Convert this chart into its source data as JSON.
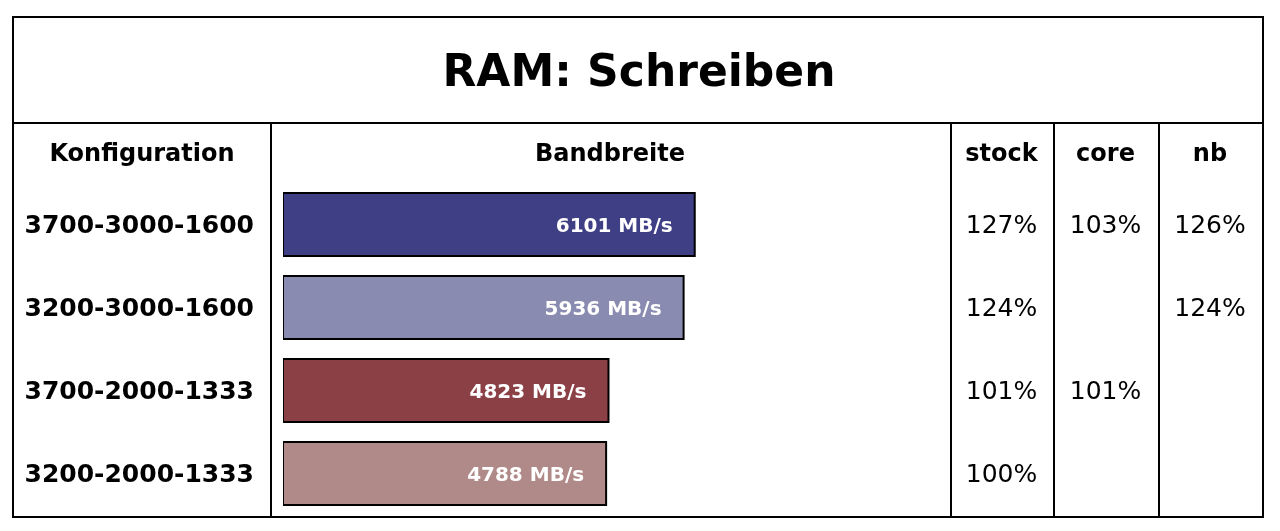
{
  "chart_data": [
    {
      "type": "bar",
      "orientation": "horizontal",
      "title": "RAM: Schreiben",
      "ylabel": "Konfiguration",
      "xlabel": "Bandbreite",
      "categories": [
        "3700-3000-1600",
        "3200-3000-1600",
        "3700-2000-1333",
        "3200-2000-1333"
      ],
      "values": [
        6101,
        5936,
        4823,
        4788
      ],
      "colors": [
        "#3f3f86",
        "#8a8bb0",
        "#8b4046",
        "#b08a88"
      ],
      "value_labels": [
        "6101 MB/s",
        "5936 MB/s",
        "4823 MB/s",
        "4788 MB/s"
      ]
    },
    {
      "type": "other",
      "categories": [
        "stock",
        "core",
        "nb"
      ],
      "cell_labels": [
        [
          "127%",
          "103%",
          "126%"
        ],
        [
          "124%",
          null,
          "124%"
        ],
        [
          "101%",
          "101%",
          null
        ],
        [
          "100%",
          null,
          null
        ]
      ]
    }
  ]
}
